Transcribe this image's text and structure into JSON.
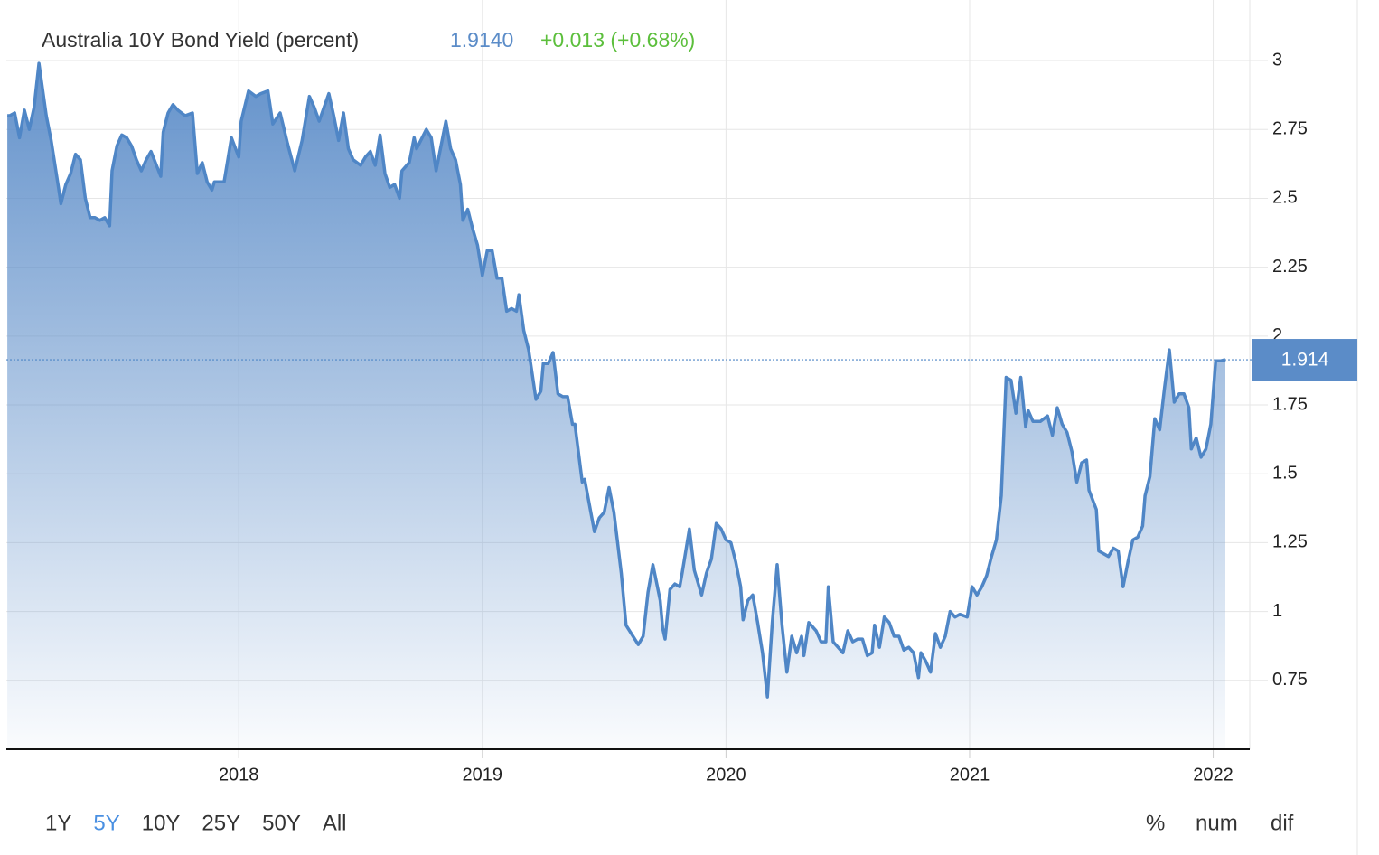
{
  "chart_data": {
    "type": "area",
    "title": "Australia 10Y Bond Yield (percent)",
    "price": "1.9140",
    "change": "+0.013 (+0.68%)",
    "current": {
      "value": 1.914,
      "label": "1.914"
    },
    "color": "#4f86c6",
    "grid": true,
    "xlim": [
      2017.02,
      2022.15
    ],
    "xticks": [
      2018,
      2019,
      2020,
      2021,
      2022
    ],
    "ylim": [
      0.5,
      3.22
    ],
    "yticks": [
      0.75,
      1,
      1.25,
      1.5,
      1.75,
      2,
      2.25,
      2.5,
      2.75,
      3
    ],
    "x": [
      2017.05,
      2017.06,
      2017.08,
      2017.1,
      2017.12,
      2017.14,
      2017.16,
      2017.18,
      2017.21,
      2017.23,
      2017.26,
      2017.27,
      2017.29,
      2017.31,
      2017.33,
      2017.35,
      2017.37,
      2017.39,
      2017.41,
      2017.43,
      2017.45,
      2017.47,
      2017.48,
      2017.5,
      2017.52,
      2017.54,
      2017.56,
      2017.58,
      2017.6,
      2017.62,
      2017.64,
      2017.68,
      2017.69,
      2017.71,
      2017.73,
      2017.75,
      2017.78,
      2017.81,
      2017.83,
      2017.85,
      2017.87,
      2017.89,
      2017.9,
      2017.93,
      2017.94,
      2017.97,
      2018.0,
      2018.01,
      2018.04,
      2018.07,
      2018.09,
      2018.12,
      2018.14,
      2018.17,
      2018.2,
      2018.23,
      2018.26,
      2018.29,
      2018.31,
      2018.33,
      2018.37,
      2018.39,
      2018.41,
      2018.43,
      2018.45,
      2018.47,
      2018.5,
      2018.52,
      2018.54,
      2018.56,
      2018.58,
      2018.6,
      2018.62,
      2018.64,
      2018.66,
      2018.67,
      2018.7,
      2018.72,
      2018.73,
      2018.77,
      2018.79,
      2018.81,
      2018.85,
      2018.87,
      2018.89,
      2018.91,
      2018.92,
      2018.94,
      2018.96,
      2018.98,
      2019.0,
      2019.02,
      2019.04,
      2019.06,
      2019.08,
      2019.1,
      2019.12,
      2019.14,
      2019.15,
      2019.17,
      2019.19,
      2019.22,
      2019.24,
      2019.25,
      2019.27,
      2019.29,
      2019.31,
      2019.33,
      2019.35,
      2019.37,
      2019.38,
      2019.41,
      2019.42,
      2019.46,
      2019.48,
      2019.5,
      2019.52,
      2019.54,
      2019.57,
      2019.59,
      2019.64,
      2019.66,
      2019.68,
      2019.7,
      2019.73,
      2019.74,
      2019.75,
      2019.77,
      2019.79,
      2019.81,
      2019.82,
      2019.85,
      2019.87,
      2019.89,
      2019.9,
      2019.92,
      2019.94,
      2019.96,
      2019.98,
      2020.0,
      2020.02,
      2020.04,
      2020.06,
      2020.07,
      2020.09,
      2020.11,
      2020.13,
      2020.15,
      2020.17,
      2020.19,
      2020.21,
      2020.23,
      2020.25,
      2020.27,
      2020.29,
      2020.31,
      2020.32,
      2020.34,
      2020.37,
      2020.39,
      2020.41,
      2020.42,
      2020.44,
      2020.48,
      2020.5,
      2020.52,
      2020.54,
      2020.56,
      2020.58,
      2020.6,
      2020.61,
      2020.63,
      2020.65,
      2020.67,
      2020.69,
      2020.71,
      2020.73,
      2020.75,
      2020.77,
      2020.79,
      2020.8,
      2020.82,
      2020.84,
      2020.86,
      2020.88,
      2020.9,
      2020.92,
      2020.94,
      2020.96,
      2020.99,
      2021.01,
      2021.03,
      2021.05,
      2021.07,
      2021.09,
      2021.11,
      2021.13,
      2021.15,
      2021.17,
      2021.19,
      2021.21,
      2021.23,
      2021.24,
      2021.26,
      2021.29,
      2021.32,
      2021.34,
      2021.36,
      2021.38,
      2021.4,
      2021.42,
      2021.44,
      2021.46,
      2021.48,
      2021.49,
      2021.52,
      2021.53,
      2021.57,
      2021.59,
      2021.61,
      2021.63,
      2021.65,
      2021.67,
      2021.69,
      2021.71,
      2021.72,
      2021.74,
      2021.76,
      2021.78,
      2021.8,
      2021.82,
      2021.84,
      2021.86,
      2021.88,
      2021.9,
      2021.91,
      2021.93,
      2021.95,
      2021.97,
      2021.99,
      2022.01,
      2022.03,
      2022.05
    ],
    "values": [
      2.8,
      2.8,
      2.81,
      2.72,
      2.82,
      2.75,
      2.83,
      2.99,
      2.8,
      2.71,
      2.54,
      2.48,
      2.55,
      2.59,
      2.66,
      2.64,
      2.5,
      2.43,
      2.43,
      2.42,
      2.43,
      2.4,
      2.6,
      2.69,
      2.73,
      2.72,
      2.69,
      2.64,
      2.6,
      2.64,
      2.67,
      2.58,
      2.74,
      2.81,
      2.84,
      2.82,
      2.8,
      2.81,
      2.59,
      2.63,
      2.56,
      2.53,
      2.56,
      2.56,
      2.56,
      2.72,
      2.65,
      2.78,
      2.89,
      2.87,
      2.88,
      2.89,
      2.77,
      2.81,
      2.7,
      2.6,
      2.71,
      2.87,
      2.83,
      2.78,
      2.88,
      2.8,
      2.71,
      2.81,
      2.68,
      2.64,
      2.62,
      2.65,
      2.67,
      2.62,
      2.73,
      2.59,
      2.54,
      2.55,
      2.5,
      2.6,
      2.63,
      2.72,
      2.68,
      2.75,
      2.72,
      2.6,
      2.78,
      2.68,
      2.64,
      2.55,
      2.42,
      2.46,
      2.39,
      2.33,
      2.22,
      2.31,
      2.31,
      2.21,
      2.21,
      2.09,
      2.1,
      2.09,
      2.15,
      2.02,
      1.95,
      1.77,
      1.8,
      1.9,
      1.9,
      1.94,
      1.79,
      1.78,
      1.78,
      1.68,
      1.68,
      1.47,
      1.48,
      1.29,
      1.34,
      1.36,
      1.45,
      1.36,
      1.14,
      0.95,
      0.88,
      0.91,
      1.07,
      1.17,
      1.04,
      0.94,
      0.9,
      1.08,
      1.1,
      1.09,
      1.14,
      1.3,
      1.15,
      1.09,
      1.06,
      1.14,
      1.19,
      1.32,
      1.3,
      1.26,
      1.25,
      1.18,
      1.09,
      0.97,
      1.04,
      1.06,
      0.96,
      0.85,
      0.69,
      0.96,
      1.17,
      0.95,
      0.78,
      0.91,
      0.85,
      0.91,
      0.84,
      0.96,
      0.93,
      0.89,
      0.89,
      1.09,
      0.89,
      0.85,
      0.93,
      0.89,
      0.9,
      0.9,
      0.84,
      0.85,
      0.95,
      0.87,
      0.98,
      0.96,
      0.91,
      0.91,
      0.86,
      0.87,
      0.85,
      0.76,
      0.85,
      0.82,
      0.78,
      0.92,
      0.87,
      0.91,
      1.0,
      0.98,
      0.99,
      0.98,
      1.09,
      1.06,
      1.09,
      1.13,
      1.2,
      1.26,
      1.42,
      1.85,
      1.84,
      1.72,
      1.85,
      1.67,
      1.73,
      1.69,
      1.69,
      1.71,
      1.64,
      1.74,
      1.68,
      1.65,
      1.58,
      1.47,
      1.54,
      1.55,
      1.44,
      1.37,
      1.22,
      1.2,
      1.23,
      1.22,
      1.09,
      1.18,
      1.26,
      1.27,
      1.31,
      1.42,
      1.49,
      1.7,
      1.66,
      1.81,
      1.95,
      1.76,
      1.79,
      1.79,
      1.74,
      1.59,
      1.63,
      1.56,
      1.59,
      1.68,
      1.91,
      1.91,
      1.914
    ]
  },
  "range_buttons": [
    "1Y",
    "5Y",
    "10Y",
    "25Y",
    "50Y",
    "All"
  ],
  "selected_range": "5Y",
  "mode_buttons": [
    "%",
    "num",
    "dif"
  ]
}
